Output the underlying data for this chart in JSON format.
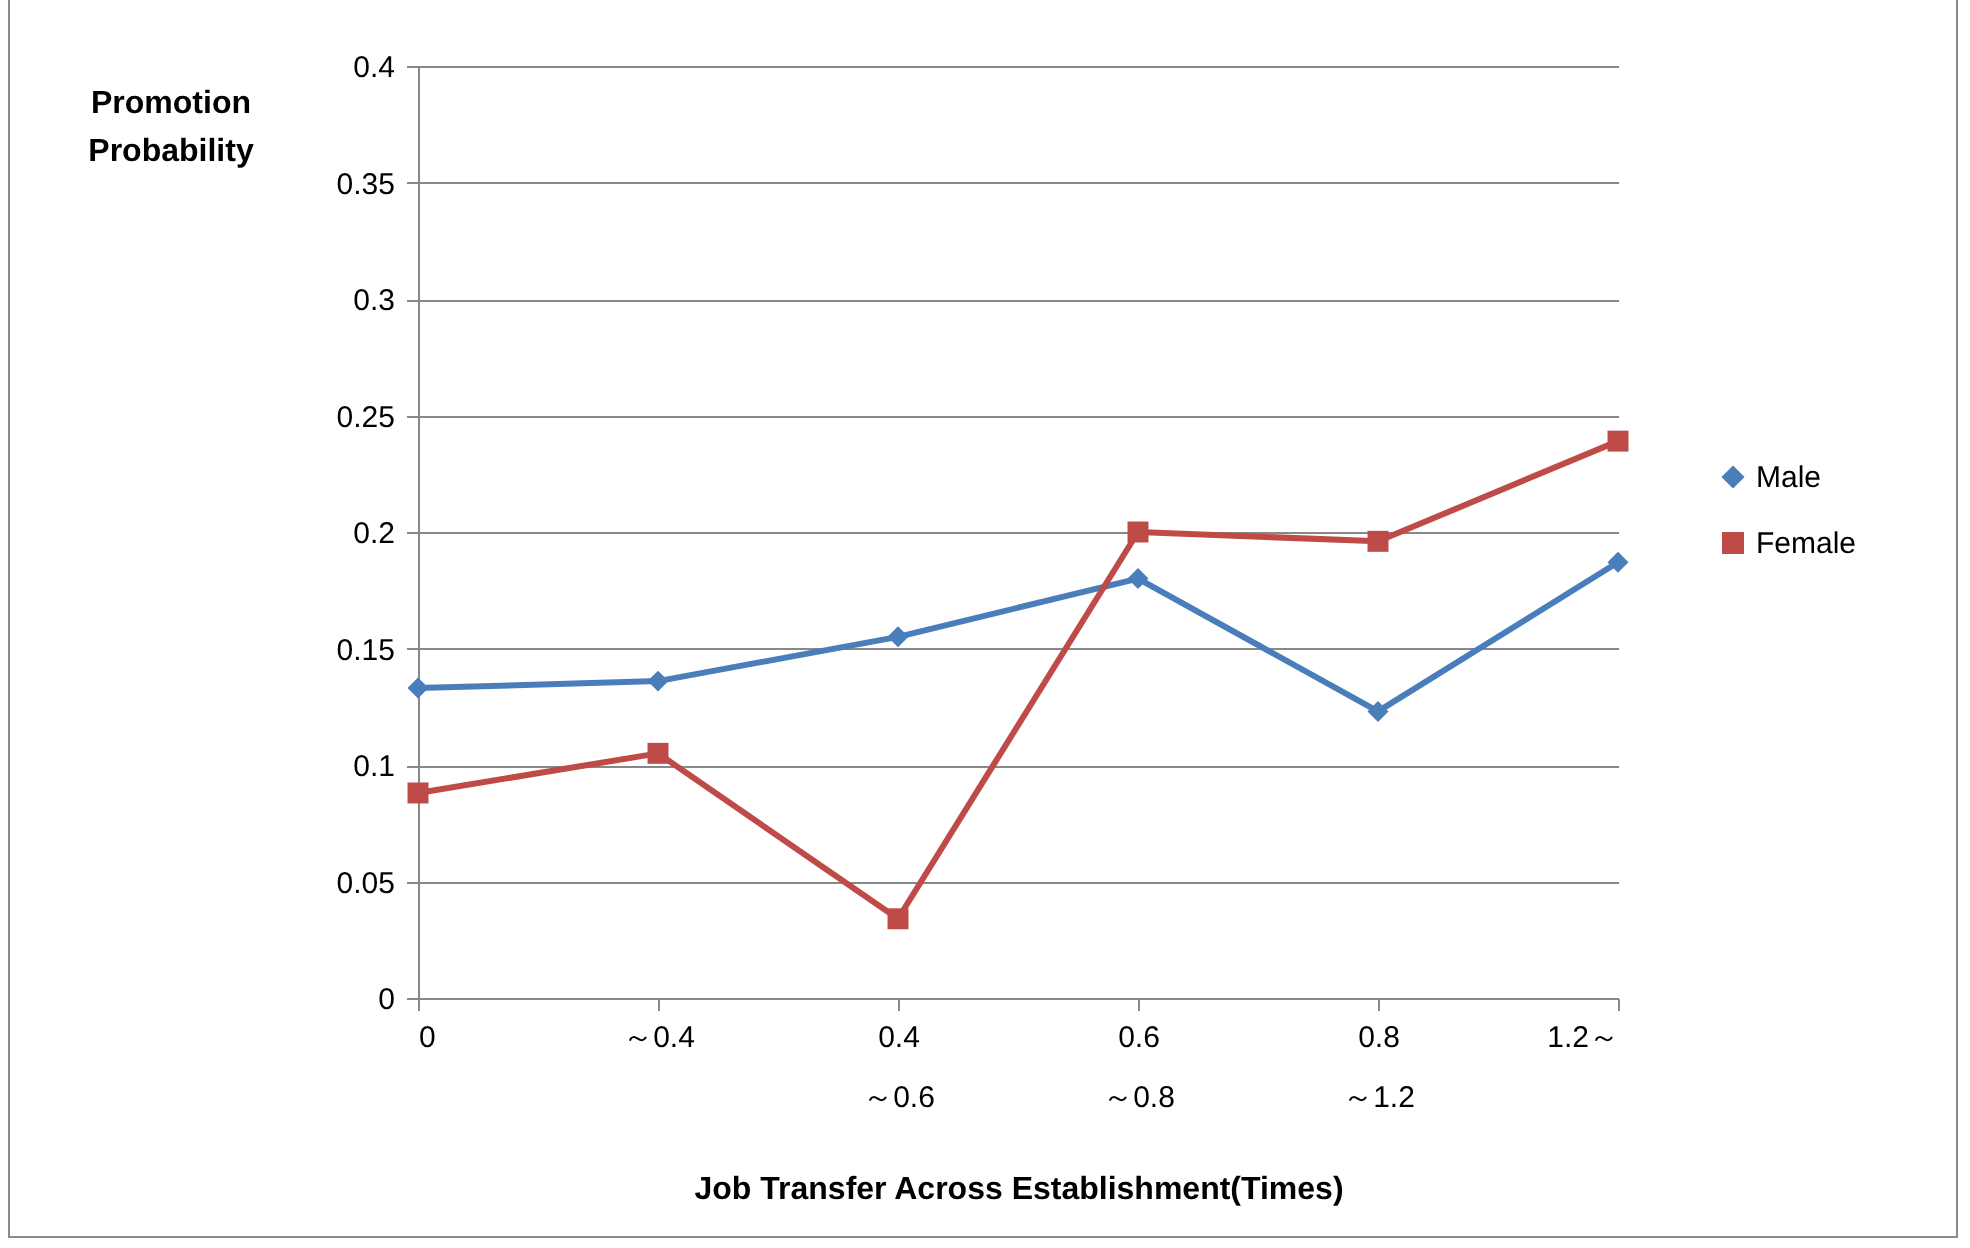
{
  "chart_data": {
    "type": "line",
    "xlabel": "Job Transfer Across Establishment(Times)",
    "ylabel": "Promotion Probability",
    "categories": [
      "0",
      "～0.4",
      "0.4 ～0.6",
      "0.6 ～0.8",
      "0.8 ～1.2",
      "1.2～"
    ],
    "series": [
      {
        "name": "Male",
        "color": "#4a7ebb",
        "marker": "diamond",
        "values": [
          0.133,
          0.136,
          0.155,
          0.18,
          0.123,
          0.187
        ]
      },
      {
        "name": "Female",
        "color": "#be4b48",
        "marker": "square",
        "values": [
          0.088,
          0.105,
          0.034,
          0.2,
          0.196,
          0.239
        ]
      }
    ],
    "ylim": [
      0,
      0.4
    ],
    "yticks": [
      0,
      0.05,
      0.1,
      0.15,
      0.2,
      0.25,
      0.3,
      0.35,
      0.4
    ],
    "grid": "y",
    "legend": "right"
  }
}
